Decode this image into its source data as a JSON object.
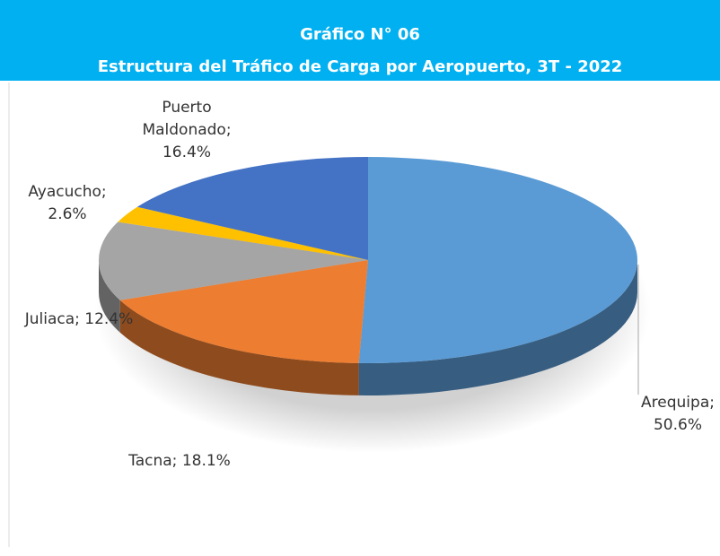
{
  "chart_data": {
    "type": "pie",
    "title": "Gráfico N° 06",
    "subtitle": "Estructura del Tráfico de Carga por Aeropuerto, 3T - 2022",
    "categories": [
      "Arequipa;",
      "Tacna;",
      "Juliaca;",
      "Ayacucho;",
      "Puerto Maldonado;"
    ],
    "values": [
      50.6,
      18.1,
      12.4,
      2.6,
      16.4
    ],
    "value_labels": [
      "50.6%",
      "18.1%",
      "12.4%",
      "2.6%",
      "16.4%"
    ],
    "colors": [
      "#5b9bd5",
      "#ed7d31",
      "#a5a5a5",
      "#ffc000",
      "#4472c4"
    ]
  }
}
